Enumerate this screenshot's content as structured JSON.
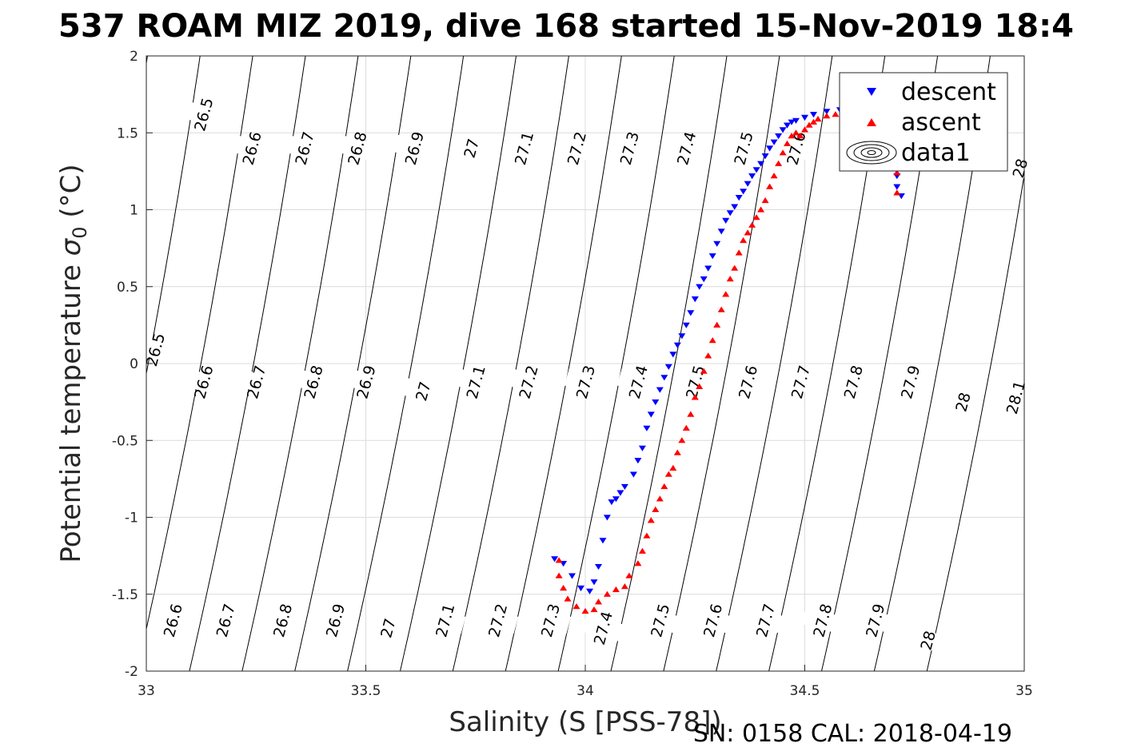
{
  "chart_data": {
    "type": "scatter",
    "title": "537 ROAM MIZ 2019, dive 168 started 15-Nov-2019 18:4",
    "xlabel": "Salinity (S [PSS-78])",
    "ylabel": "Potential temperature σ0 (°C)",
    "ylabel_main": "Potential temperature ",
    "ylabel_sym": "σ",
    "ylabel_sub": "0",
    "ylabel_unit": " (°C)",
    "footer": "SN: 0158  CAL: 2018-04-19",
    "xlim": [
      33,
      35
    ],
    "ylim": [
      -2,
      2
    ],
    "xticks": [
      "33",
      "33.5",
      "34",
      "34.5",
      "35"
    ],
    "yticks": [
      "-2",
      "-1.5",
      "-1",
      "-0.5",
      "0",
      "0.5",
      "1",
      "1.5",
      "2"
    ],
    "grid": true,
    "legend_position": "top-right",
    "legend": [
      "descent",
      "ascent",
      "data1"
    ],
    "colors": {
      "descent": "#0000ff",
      "ascent": "#ff0000",
      "contour": "#000000",
      "grid": "#dcdcdc"
    },
    "series": [
      {
        "name": "descent",
        "marker": "triangle-down",
        "x": [
          33.93,
          33.95,
          33.97,
          33.99,
          34.01,
          34.02,
          34.03,
          34.04,
          34.05,
          34.06,
          34.07,
          34.08,
          34.09,
          34.11,
          34.12,
          34.13,
          34.14,
          34.15,
          34.16,
          34.17,
          34.18,
          34.19,
          34.2,
          34.21,
          34.22,
          34.23,
          34.24,
          34.25,
          34.26,
          34.27,
          34.28,
          34.29,
          34.3,
          34.31,
          34.32,
          34.33,
          34.34,
          34.35,
          34.36,
          34.37,
          34.38,
          34.39,
          34.4,
          34.41,
          34.42,
          34.43,
          34.44,
          34.45,
          34.46,
          34.47,
          34.48,
          34.5,
          34.52,
          34.55,
          34.58,
          34.6,
          34.62,
          34.64,
          34.66,
          34.68,
          34.69,
          34.7,
          34.71,
          34.71,
          34.72
        ],
        "y": [
          -1.27,
          -1.3,
          -1.38,
          -1.46,
          -1.48,
          -1.42,
          -1.32,
          -1.15,
          -1.0,
          -0.9,
          -0.88,
          -0.84,
          -0.8,
          -0.72,
          -0.63,
          -0.55,
          -0.42,
          -0.33,
          -0.25,
          -0.17,
          -0.09,
          -0.02,
          0.06,
          0.12,
          0.18,
          0.25,
          0.33,
          0.42,
          0.5,
          0.55,
          0.62,
          0.7,
          0.78,
          0.86,
          0.93,
          0.98,
          1.02,
          1.08,
          1.12,
          1.17,
          1.22,
          1.26,
          1.3,
          1.35,
          1.4,
          1.44,
          1.48,
          1.52,
          1.55,
          1.57,
          1.58,
          1.6,
          1.62,
          1.64,
          1.65,
          1.65,
          1.62,
          1.58,
          1.52,
          1.45,
          1.38,
          1.3,
          1.22,
          1.15,
          1.09
        ]
      },
      {
        "name": "ascent",
        "marker": "triangle-up",
        "x": [
          33.94,
          33.94,
          33.95,
          33.96,
          33.98,
          34.0,
          34.02,
          34.03,
          34.05,
          34.07,
          34.09,
          34.1,
          34.12,
          34.13,
          34.14,
          34.15,
          34.16,
          34.17,
          34.18,
          34.19,
          34.2,
          34.21,
          34.22,
          34.23,
          34.24,
          34.25,
          34.26,
          34.27,
          34.28,
          34.29,
          34.3,
          34.31,
          34.32,
          34.33,
          34.34,
          34.35,
          34.36,
          34.37,
          34.38,
          34.39,
          34.4,
          34.41,
          34.42,
          34.43,
          34.44,
          34.45,
          34.46,
          34.47,
          34.48,
          34.49,
          34.5,
          34.51,
          34.52,
          34.53,
          34.55,
          34.57,
          34.59,
          34.61,
          34.63,
          34.65,
          34.67,
          34.69,
          34.7,
          34.71,
          34.71
        ],
        "y": [
          -1.28,
          -1.38,
          -1.46,
          -1.53,
          -1.58,
          -1.61,
          -1.6,
          -1.55,
          -1.5,
          -1.47,
          -1.45,
          -1.38,
          -1.3,
          -1.22,
          -1.12,
          -1.02,
          -0.95,
          -0.88,
          -0.8,
          -0.72,
          -0.68,
          -0.58,
          -0.5,
          -0.42,
          -0.33,
          -0.22,
          -0.15,
          -0.05,
          0.05,
          0.15,
          0.25,
          0.35,
          0.45,
          0.55,
          0.62,
          0.72,
          0.8,
          0.85,
          0.9,
          0.95,
          1.0,
          1.06,
          1.15,
          1.22,
          1.3,
          1.37,
          1.43,
          1.48,
          1.5,
          1.48,
          1.52,
          1.55,
          1.57,
          1.59,
          1.61,
          1.62,
          1.63,
          1.63,
          1.61,
          1.56,
          1.5,
          1.42,
          1.33,
          1.24,
          1.11
        ]
      }
    ],
    "contour_lines": [
      {
        "s": 33.0,
        "t": 1.58
      },
      {
        "s": 33.12,
        "t": 1.58
      },
      {
        "s": 33.24,
        "t": 1.58
      },
      {
        "s": 33.36,
        "t": 1.58
      },
      {
        "s": 33.48,
        "t": 1.58
      },
      {
        "s": 33.6,
        "t": 1.58
      },
      {
        "s": 33.72,
        "t": 1.58
      },
      {
        "s": 33.84,
        "t": 1.58
      },
      {
        "s": 33.96,
        "t": 1.58
      },
      {
        "s": 34.08,
        "t": 1.58
      },
      {
        "s": 34.2,
        "t": 1.58
      },
      {
        "s": 34.32,
        "t": 1.58
      },
      {
        "s": 34.44,
        "t": 1.58
      },
      {
        "s": 34.56,
        "t": 1.58
      },
      {
        "s": 34.68,
        "t": 1.58
      },
      {
        "s": 34.8,
        "t": 1.58
      },
      {
        "s": 34.92,
        "t": 1.58
      },
      {
        "s": 35.04,
        "t": 1.58
      }
    ],
    "contour_labels": [
      {
        "text": "26.5",
        "x": 33.13,
        "y": 1.62
      },
      {
        "text": "26.6",
        "x": 33.24,
        "y": 1.4
      },
      {
        "text": "26.7",
        "x": 33.36,
        "y": 1.4
      },
      {
        "text": "26.8",
        "x": 33.48,
        "y": 1.4
      },
      {
        "text": "26.9",
        "x": 33.61,
        "y": 1.4
      },
      {
        "text": "27",
        "x": 33.74,
        "y": 1.4
      },
      {
        "text": "27.1",
        "x": 33.86,
        "y": 1.4
      },
      {
        "text": "27.2",
        "x": 33.98,
        "y": 1.4
      },
      {
        "text": "27.3",
        "x": 34.1,
        "y": 1.4
      },
      {
        "text": "27.4",
        "x": 34.23,
        "y": 1.4
      },
      {
        "text": "27.5",
        "x": 34.36,
        "y": 1.4
      },
      {
        "text": "27.6",
        "x": 34.48,
        "y": 1.4
      },
      {
        "text": "28",
        "x": 34.99,
        "y": 1.27
      },
      {
        "text": "26.5",
        "x": 33.02,
        "y": 0.09
      },
      {
        "text": "26.6",
        "x": 33.13,
        "y": -0.12
      },
      {
        "text": "26.7",
        "x": 33.25,
        "y": -0.12
      },
      {
        "text": "26.8",
        "x": 33.38,
        "y": -0.12
      },
      {
        "text": "26.9",
        "x": 33.5,
        "y": -0.12
      },
      {
        "text": "27",
        "x": 33.63,
        "y": -0.18
      },
      {
        "text": "27.1",
        "x": 33.75,
        "y": -0.12
      },
      {
        "text": "27.2",
        "x": 33.87,
        "y": -0.12
      },
      {
        "text": "27.3",
        "x": 34.0,
        "y": -0.12
      },
      {
        "text": "27.4",
        "x": 34.12,
        "y": -0.12
      },
      {
        "text": "27.5",
        "x": 34.25,
        "y": -0.12
      },
      {
        "text": "27.6",
        "x": 34.37,
        "y": -0.12
      },
      {
        "text": "27.7",
        "x": 34.49,
        "y": -0.12
      },
      {
        "text": "27.8",
        "x": 34.61,
        "y": -0.12
      },
      {
        "text": "27.9",
        "x": 34.74,
        "y": -0.12
      },
      {
        "text": "28",
        "x": 34.86,
        "y": -0.25
      },
      {
        "text": "28.1",
        "x": 34.98,
        "y": -0.22
      },
      {
        "text": "26.6",
        "x": 33.06,
        "y": -1.67
      },
      {
        "text": "26.7",
        "x": 33.18,
        "y": -1.67
      },
      {
        "text": "26.8",
        "x": 33.31,
        "y": -1.67
      },
      {
        "text": "26.9",
        "x": 33.43,
        "y": -1.67
      },
      {
        "text": "27",
        "x": 33.55,
        "y": -1.72
      },
      {
        "text": "27.1",
        "x": 33.68,
        "y": -1.67
      },
      {
        "text": "27.2",
        "x": 33.8,
        "y": -1.67
      },
      {
        "text": "27.3",
        "x": 33.92,
        "y": -1.67
      },
      {
        "text": "27.4",
        "x": 34.04,
        "y": -1.72
      },
      {
        "text": "27.5",
        "x": 34.17,
        "y": -1.67
      },
      {
        "text": "27.6",
        "x": 34.29,
        "y": -1.67
      },
      {
        "text": "27.7",
        "x": 34.41,
        "y": -1.67
      },
      {
        "text": "27.8",
        "x": 34.54,
        "y": -1.67
      },
      {
        "text": "27.9",
        "x": 34.66,
        "y": -1.67
      },
      {
        "text": "28",
        "x": 34.78,
        "y": -1.8
      }
    ]
  }
}
